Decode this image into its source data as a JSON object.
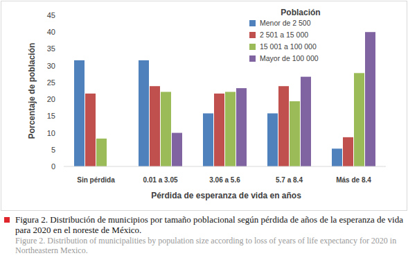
{
  "chart_data": {
    "type": "bar",
    "categories": [
      "Sin pérdida",
      "0.01 a 3.05",
      "3.06 a 5.6",
      "5.7 a 8.4",
      "Más de 8.4"
    ],
    "series": [
      {
        "name": "Menor de 2 500",
        "color": "#4f81bd",
        "values": [
          31.6,
          31.6,
          15.8,
          15.8,
          5.3
        ]
      },
      {
        "name": "2 501 a 15 000",
        "color": "#c0504d",
        "values": [
          21.7,
          23.9,
          21.7,
          23.9,
          8.7
        ]
      },
      {
        "name": "15 001 a 100 000",
        "color": "#9bbb59",
        "values": [
          8.3,
          22.2,
          22.2,
          19.4,
          27.8
        ]
      },
      {
        "name": "Mayor de 100 000",
        "color": "#8064a2",
        "values": [
          0,
          10,
          23.3,
          26.7,
          40
        ]
      }
    ],
    "x_label": "Pérdida de esperanza de vida en años",
    "y_label": "Porcentaje de población",
    "legend_title": "Población",
    "legend": "top-right",
    "grid": false,
    "ylim": [
      0,
      45
    ],
    "yticks": [
      0,
      5,
      10,
      15,
      20,
      25,
      30,
      35,
      40,
      45
    ],
    "caption": "Figura 2. Distribución de municipios por tamaño poblacional según pérdida de años de la esperanza de vida para 2020 en el noreste de México.",
    "caption_en": "Figure 2. Distribution of municipalities by population size according to loss of years of life expectancy for 2020 in Northeastern Mexico."
  }
}
